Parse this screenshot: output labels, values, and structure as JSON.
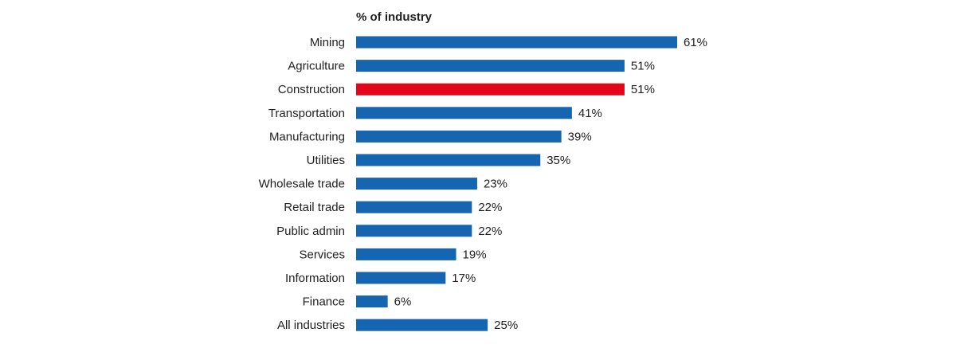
{
  "chart_data": {
    "type": "bar",
    "orientation": "horizontal",
    "title": "% of industry",
    "xlabel": "",
    "ylabel": "",
    "categories": [
      "Mining",
      "Agriculture",
      "Construction",
      "Transportation",
      "Manufacturing",
      "Utilities",
      "Wholesale trade",
      "Retail trade",
      "Public admin",
      "Services",
      "Information",
      "Finance",
      "All industries"
    ],
    "values": [
      61,
      51,
      51,
      41,
      39,
      35,
      23,
      22,
      22,
      19,
      17,
      6,
      25
    ],
    "value_labels": [
      "61%",
      "51%",
      "51%",
      "41%",
      "39%",
      "35%",
      "23%",
      "22%",
      "22%",
      "19%",
      "17%",
      "6%",
      "25%"
    ],
    "highlight_category": "Construction",
    "xlim": [
      0,
      61
    ],
    "grid": false,
    "legend": "none",
    "colors": {
      "bar": "#1565b0",
      "highlight": "#e3051b",
      "text": "#1f1f1f"
    }
  }
}
